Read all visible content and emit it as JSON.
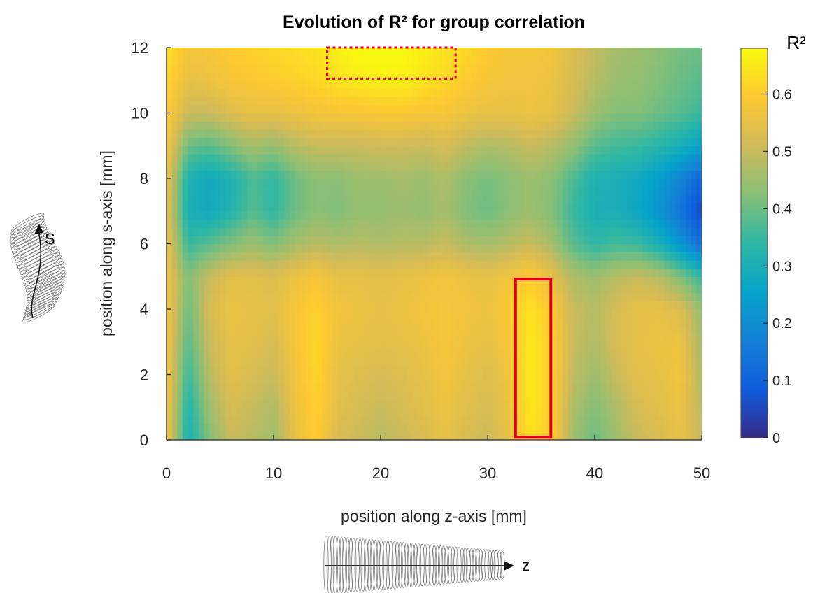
{
  "chart_data": {
    "type": "heatmap",
    "title": "Evolution of R² for group correlation",
    "xlabel": "position along z-axis [mm]",
    "ylabel": "position along s-axis [mm]",
    "xlim": [
      0,
      50
    ],
    "ylim": [
      0,
      12
    ],
    "x_ticks": [
      0,
      10,
      20,
      30,
      40,
      50
    ],
    "y_ticks": [
      0,
      2,
      4,
      6,
      8,
      10,
      12
    ],
    "colorbar": {
      "label": "R²",
      "range": [
        0,
        0.68
      ],
      "ticks": [
        0,
        0.1,
        0.2,
        0.3,
        0.4,
        0.5,
        0.6
      ],
      "colormap": "parula",
      "stops": [
        "#352a87",
        "#0f5cdd",
        "#1481d6",
        "#06a4ca",
        "#2eb7a4",
        "#87bf77",
        "#d1bb59",
        "#fec832",
        "#f9fb0e"
      ]
    },
    "z_grid": {
      "x": [
        0,
        2,
        4,
        6,
        8,
        10,
        12,
        14,
        16,
        18,
        20,
        22,
        24,
        26,
        28,
        30,
        32,
        34,
        36,
        38,
        40,
        42,
        44,
        46,
        48,
        50
      ],
      "y": [
        0,
        1,
        2,
        3,
        4,
        5,
        6,
        7,
        8,
        9,
        10,
        11,
        12
      ],
      "values": [
        [
          0.58,
          0.3,
          0.42,
          0.5,
          0.48,
          0.45,
          0.55,
          0.6,
          0.52,
          0.5,
          0.48,
          0.5,
          0.52,
          0.55,
          0.52,
          0.5,
          0.55,
          0.64,
          0.6,
          0.45,
          0.4,
          0.45,
          0.5,
          0.52,
          0.55,
          0.5
        ],
        [
          0.58,
          0.32,
          0.45,
          0.52,
          0.5,
          0.47,
          0.56,
          0.61,
          0.54,
          0.52,
          0.5,
          0.52,
          0.54,
          0.56,
          0.54,
          0.52,
          0.56,
          0.65,
          0.6,
          0.47,
          0.42,
          0.47,
          0.52,
          0.54,
          0.56,
          0.48
        ],
        [
          0.58,
          0.35,
          0.48,
          0.54,
          0.52,
          0.5,
          0.57,
          0.62,
          0.55,
          0.53,
          0.52,
          0.53,
          0.55,
          0.57,
          0.55,
          0.53,
          0.57,
          0.65,
          0.6,
          0.49,
          0.45,
          0.5,
          0.54,
          0.55,
          0.57,
          0.47
        ],
        [
          0.58,
          0.38,
          0.5,
          0.55,
          0.54,
          0.52,
          0.58,
          0.62,
          0.56,
          0.55,
          0.54,
          0.55,
          0.56,
          0.58,
          0.56,
          0.55,
          0.58,
          0.65,
          0.6,
          0.5,
          0.47,
          0.52,
          0.55,
          0.56,
          0.56,
          0.46
        ],
        [
          0.58,
          0.4,
          0.52,
          0.56,
          0.55,
          0.54,
          0.58,
          0.61,
          0.57,
          0.56,
          0.55,
          0.56,
          0.57,
          0.58,
          0.57,
          0.56,
          0.59,
          0.64,
          0.59,
          0.5,
          0.48,
          0.52,
          0.55,
          0.55,
          0.53,
          0.44
        ],
        [
          0.57,
          0.42,
          0.5,
          0.54,
          0.54,
          0.53,
          0.56,
          0.58,
          0.55,
          0.55,
          0.54,
          0.55,
          0.56,
          0.57,
          0.56,
          0.55,
          0.57,
          0.6,
          0.55,
          0.47,
          0.45,
          0.48,
          0.5,
          0.48,
          0.42,
          0.35
        ],
        [
          0.56,
          0.35,
          0.38,
          0.42,
          0.45,
          0.42,
          0.46,
          0.48,
          0.47,
          0.48,
          0.47,
          0.48,
          0.48,
          0.5,
          0.47,
          0.46,
          0.48,
          0.5,
          0.46,
          0.38,
          0.34,
          0.36,
          0.35,
          0.3,
          0.22,
          0.12
        ],
        [
          0.55,
          0.3,
          0.28,
          0.32,
          0.38,
          0.34,
          0.4,
          0.43,
          0.42,
          0.44,
          0.44,
          0.45,
          0.44,
          0.46,
          0.42,
          0.4,
          0.43,
          0.45,
          0.42,
          0.35,
          0.3,
          0.3,
          0.27,
          0.22,
          0.14,
          0.05
        ],
        [
          0.56,
          0.31,
          0.28,
          0.31,
          0.37,
          0.34,
          0.4,
          0.43,
          0.43,
          0.45,
          0.45,
          0.46,
          0.45,
          0.47,
          0.43,
          0.41,
          0.43,
          0.45,
          0.43,
          0.37,
          0.31,
          0.3,
          0.28,
          0.24,
          0.18,
          0.1
        ],
        [
          0.58,
          0.4,
          0.38,
          0.42,
          0.46,
          0.44,
          0.48,
          0.5,
          0.5,
          0.5,
          0.51,
          0.51,
          0.5,
          0.52,
          0.49,
          0.47,
          0.48,
          0.5,
          0.48,
          0.44,
          0.38,
          0.36,
          0.35,
          0.33,
          0.3,
          0.25
        ],
        [
          0.6,
          0.5,
          0.5,
          0.53,
          0.55,
          0.55,
          0.56,
          0.57,
          0.58,
          0.58,
          0.59,
          0.59,
          0.58,
          0.58,
          0.56,
          0.55,
          0.55,
          0.56,
          0.55,
          0.5,
          0.45,
          0.42,
          0.42,
          0.4,
          0.38,
          0.35
        ],
        [
          0.62,
          0.55,
          0.56,
          0.58,
          0.59,
          0.6,
          0.61,
          0.62,
          0.64,
          0.65,
          0.66,
          0.66,
          0.64,
          0.62,
          0.6,
          0.58,
          0.57,
          0.57,
          0.56,
          0.52,
          0.48,
          0.45,
          0.44,
          0.42,
          0.4,
          0.38
        ],
        [
          0.64,
          0.58,
          0.58,
          0.6,
          0.61,
          0.62,
          0.63,
          0.64,
          0.66,
          0.68,
          0.68,
          0.68,
          0.66,
          0.64,
          0.62,
          0.6,
          0.58,
          0.58,
          0.57,
          0.53,
          0.49,
          0.46,
          0.45,
          0.43,
          0.41,
          0.4
        ]
      ]
    },
    "highlight_regions": [
      {
        "style": "dotted",
        "x": [
          15,
          27
        ],
        "y": [
          11.05,
          12.0
        ],
        "color": "#e6001f"
      },
      {
        "style": "solid",
        "x": [
          32.6,
          35.9
        ],
        "y": [
          0.08,
          4.92
        ],
        "color": "#e6001f"
      }
    ]
  },
  "schematics": {
    "s_label": "S",
    "z_label": "z"
  }
}
